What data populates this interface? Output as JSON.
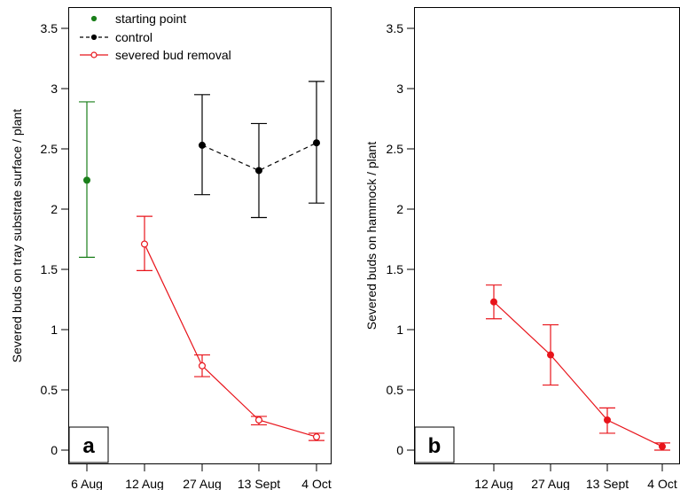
{
  "chart_data": [
    {
      "panel_label": "a",
      "type": "line",
      "ylabel": "Severed buds on tray substrate surface / plant",
      "ylim": [
        0,
        3.5
      ],
      "yticks": [
        "0",
        "0.5",
        "1",
        "1.5",
        "2",
        "2.5",
        "3",
        "3.5"
      ],
      "categories": [
        "6 Aug",
        "12 Aug",
        "27 Aug",
        "13 Sept",
        "4 Oct"
      ],
      "legend": {
        "placement": "top-left",
        "entries": [
          "starting point",
          "control",
          "severed bud removal"
        ]
      },
      "series": [
        {
          "name": "starting point",
          "color": "#1a7f1a",
          "marker": "filled",
          "line": "none",
          "points": [
            {
              "x": "6 Aug",
              "y": 2.24,
              "lo": 1.6,
              "hi": 2.89
            }
          ]
        },
        {
          "name": "control",
          "color": "#000000",
          "marker": "filled",
          "line": "dashed",
          "points": [
            {
              "x": "27 Aug",
              "y": 2.53,
              "lo": 2.12,
              "hi": 2.95
            },
            {
              "x": "13 Sept",
              "y": 2.32,
              "lo": 1.93,
              "hi": 2.71
            },
            {
              "x": "4 Oct",
              "y": 2.55,
              "lo": 2.05,
              "hi": 3.06
            }
          ]
        },
        {
          "name": "severed bud removal",
          "color": "#e8141b",
          "marker": "open",
          "line": "solid",
          "points": [
            {
              "x": "12 Aug",
              "y": 1.71,
              "lo": 1.49,
              "hi": 1.94
            },
            {
              "x": "27 Aug",
              "y": 0.7,
              "lo": 0.61,
              "hi": 0.79
            },
            {
              "x": "13 Sept",
              "y": 0.25,
              "lo": 0.21,
              "hi": 0.28
            },
            {
              "x": "4 Oct",
              "y": 0.11,
              "lo": 0.08,
              "hi": 0.14
            }
          ]
        }
      ]
    },
    {
      "panel_label": "b",
      "type": "line",
      "ylabel": "Severed buds on hammock / plant",
      "ylim": [
        0,
        3.5
      ],
      "yticks": [
        "0",
        "0.5",
        "1",
        "1.5",
        "2",
        "2.5",
        "3",
        "3.5"
      ],
      "categories": [
        "12 Aug",
        "27 Aug",
        "13 Sept",
        "4 Oct"
      ],
      "series": [
        {
          "color": "#e8141b",
          "marker": "filled",
          "line": "solid",
          "points": [
            {
              "x": "12 Aug",
              "y": 1.23,
              "lo": 1.09,
              "hi": 1.37
            },
            {
              "x": "27 Aug",
              "y": 0.79,
              "lo": 0.54,
              "hi": 1.04
            },
            {
              "x": "13 Sept",
              "y": 0.25,
              "lo": 0.14,
              "hi": 0.35
            },
            {
              "x": "4 Oct",
              "y": 0.03,
              "lo": 0.0,
              "hi": 0.06
            }
          ]
        }
      ]
    }
  ]
}
